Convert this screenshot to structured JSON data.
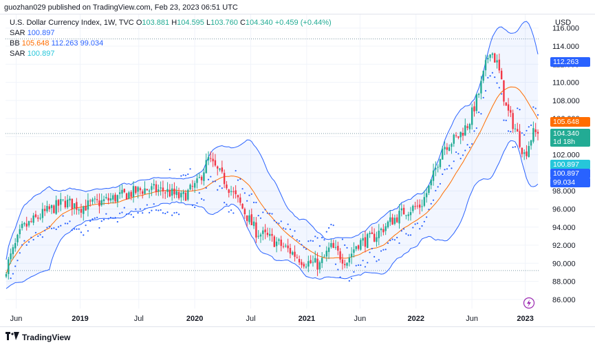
{
  "header": {
    "publisher": "guozhan029 published on TradingView.com, Feb 23, 2023 06:51 UTC"
  },
  "legend": {
    "symbol_line": "U.S. Dollar Currency Index, 1W, TVC",
    "ohlc": {
      "o_label": "O",
      "o": "103.881",
      "h_label": "H",
      "h": "104.595",
      "l_label": "L",
      "l": "103.760",
      "c_label": "C",
      "c": "104.340",
      "chg": "+0.459 (+0.44%)"
    },
    "sar1": {
      "label": "SAR",
      "value": "100.897"
    },
    "bb": {
      "label": "BB",
      "basis": "105.648",
      "upper": "112.263",
      "lower": "99.034"
    },
    "sar2": {
      "label": "SAR",
      "value": "100.897"
    }
  },
  "footer": {
    "brand": "TradingView"
  },
  "colors": {
    "up": "#22ab94",
    "down": "#f23645",
    "bb_band": "#2962ff",
    "bb_basis": "#ff6d00",
    "sar": "#2962ff",
    "grid": "#f0f3fa",
    "dotted": "#7e9aa5"
  },
  "chart_data": {
    "type": "candlestick",
    "title": "U.S. Dollar Currency Index, 1W, TVC",
    "y_axis_label": "USD",
    "ylim": [
      85,
      117.5
    ],
    "y_ticks": [
      86,
      88,
      90,
      92,
      94,
      96,
      98,
      100,
      102,
      104,
      106,
      108,
      110,
      112,
      114,
      116
    ],
    "y_tick_labels": [
      "86.000",
      "88.000",
      "90.000",
      "92.000",
      "94.000",
      "96.000",
      "98.000",
      "100.000",
      "102.000",
      "104.000",
      "106.000",
      "108.000",
      "110.000",
      "112.000",
      "114.000",
      "116.000"
    ],
    "x_ticks": [
      "Jun",
      "2019",
      "Jul",
      "2020",
      "Jul",
      "2021",
      "Jun",
      "2022",
      "Jun",
      "2023"
    ],
    "x_tick_pos": [
      0.02,
      0.14,
      0.25,
      0.355,
      0.46,
      0.565,
      0.665,
      0.77,
      0.875,
      0.975
    ],
    "close_series": [
      {
        "t": 0.0,
        "c": 89.5
      },
      {
        "t": 0.03,
        "c": 93.8
      },
      {
        "t": 0.07,
        "c": 95.5
      },
      {
        "t": 0.11,
        "c": 96.8
      },
      {
        "t": 0.14,
        "c": 96.2
      },
      {
        "t": 0.18,
        "c": 96.8
      },
      {
        "t": 0.22,
        "c": 97.5
      },
      {
        "t": 0.26,
        "c": 98.2
      },
      {
        "t": 0.3,
        "c": 98.0
      },
      {
        "t": 0.33,
        "c": 97.2
      },
      {
        "t": 0.36,
        "c": 98.8
      },
      {
        "t": 0.38,
        "c": 101.5
      },
      {
        "t": 0.41,
        "c": 99.2
      },
      {
        "t": 0.44,
        "c": 96.5
      },
      {
        "t": 0.47,
        "c": 93.5
      },
      {
        "t": 0.5,
        "c": 92.6
      },
      {
        "t": 0.53,
        "c": 91.5
      },
      {
        "t": 0.56,
        "c": 90.2
      },
      {
        "t": 0.59,
        "c": 89.8
      },
      {
        "t": 0.61,
        "c": 91.8
      },
      {
        "t": 0.64,
        "c": 90.2
      },
      {
        "t": 0.66,
        "c": 92.2
      },
      {
        "t": 0.69,
        "c": 92.8
      },
      {
        "t": 0.72,
        "c": 94.5
      },
      {
        "t": 0.75,
        "c": 95.8
      },
      {
        "t": 0.78,
        "c": 96.4
      },
      {
        "t": 0.8,
        "c": 99.0
      },
      {
        "t": 0.82,
        "c": 102.8
      },
      {
        "t": 0.85,
        "c": 104.0
      },
      {
        "t": 0.87,
        "c": 105.5
      },
      {
        "t": 0.89,
        "c": 109.0
      },
      {
        "t": 0.91,
        "c": 113.8
      },
      {
        "t": 0.925,
        "c": 111.8
      },
      {
        "t": 0.94,
        "c": 107.2
      },
      {
        "t": 0.96,
        "c": 104.5
      },
      {
        "t": 0.975,
        "c": 101.9
      },
      {
        "t": 0.99,
        "c": 104.34
      }
    ],
    "last_close": 104.34,
    "bollinger": {
      "basis": 105.648,
      "upper": 112.263,
      "lower": 99.034
    },
    "parabolic_sar": 100.897,
    "price_tags": [
      {
        "label": "112.263",
        "value": 112.263,
        "color": "#2962ff"
      },
      {
        "label": "105.648",
        "value": 105.648,
        "color": "#ff6d00"
      },
      {
        "label": "104.340",
        "sub": "1d 18h",
        "value": 104.34,
        "color": "#22ab94"
      },
      {
        "label": "100.897",
        "value": 100.897,
        "color": "#26c6da"
      },
      {
        "label": "100.897",
        "value": 100.897,
        "color": "#2962ff",
        "offset": 1
      },
      {
        "label": "99.034",
        "value": 99.034,
        "color": "#2962ff",
        "offset": 2
      }
    ],
    "dotted_levels": [
      114.8,
      104.34,
      89.2
    ]
  }
}
